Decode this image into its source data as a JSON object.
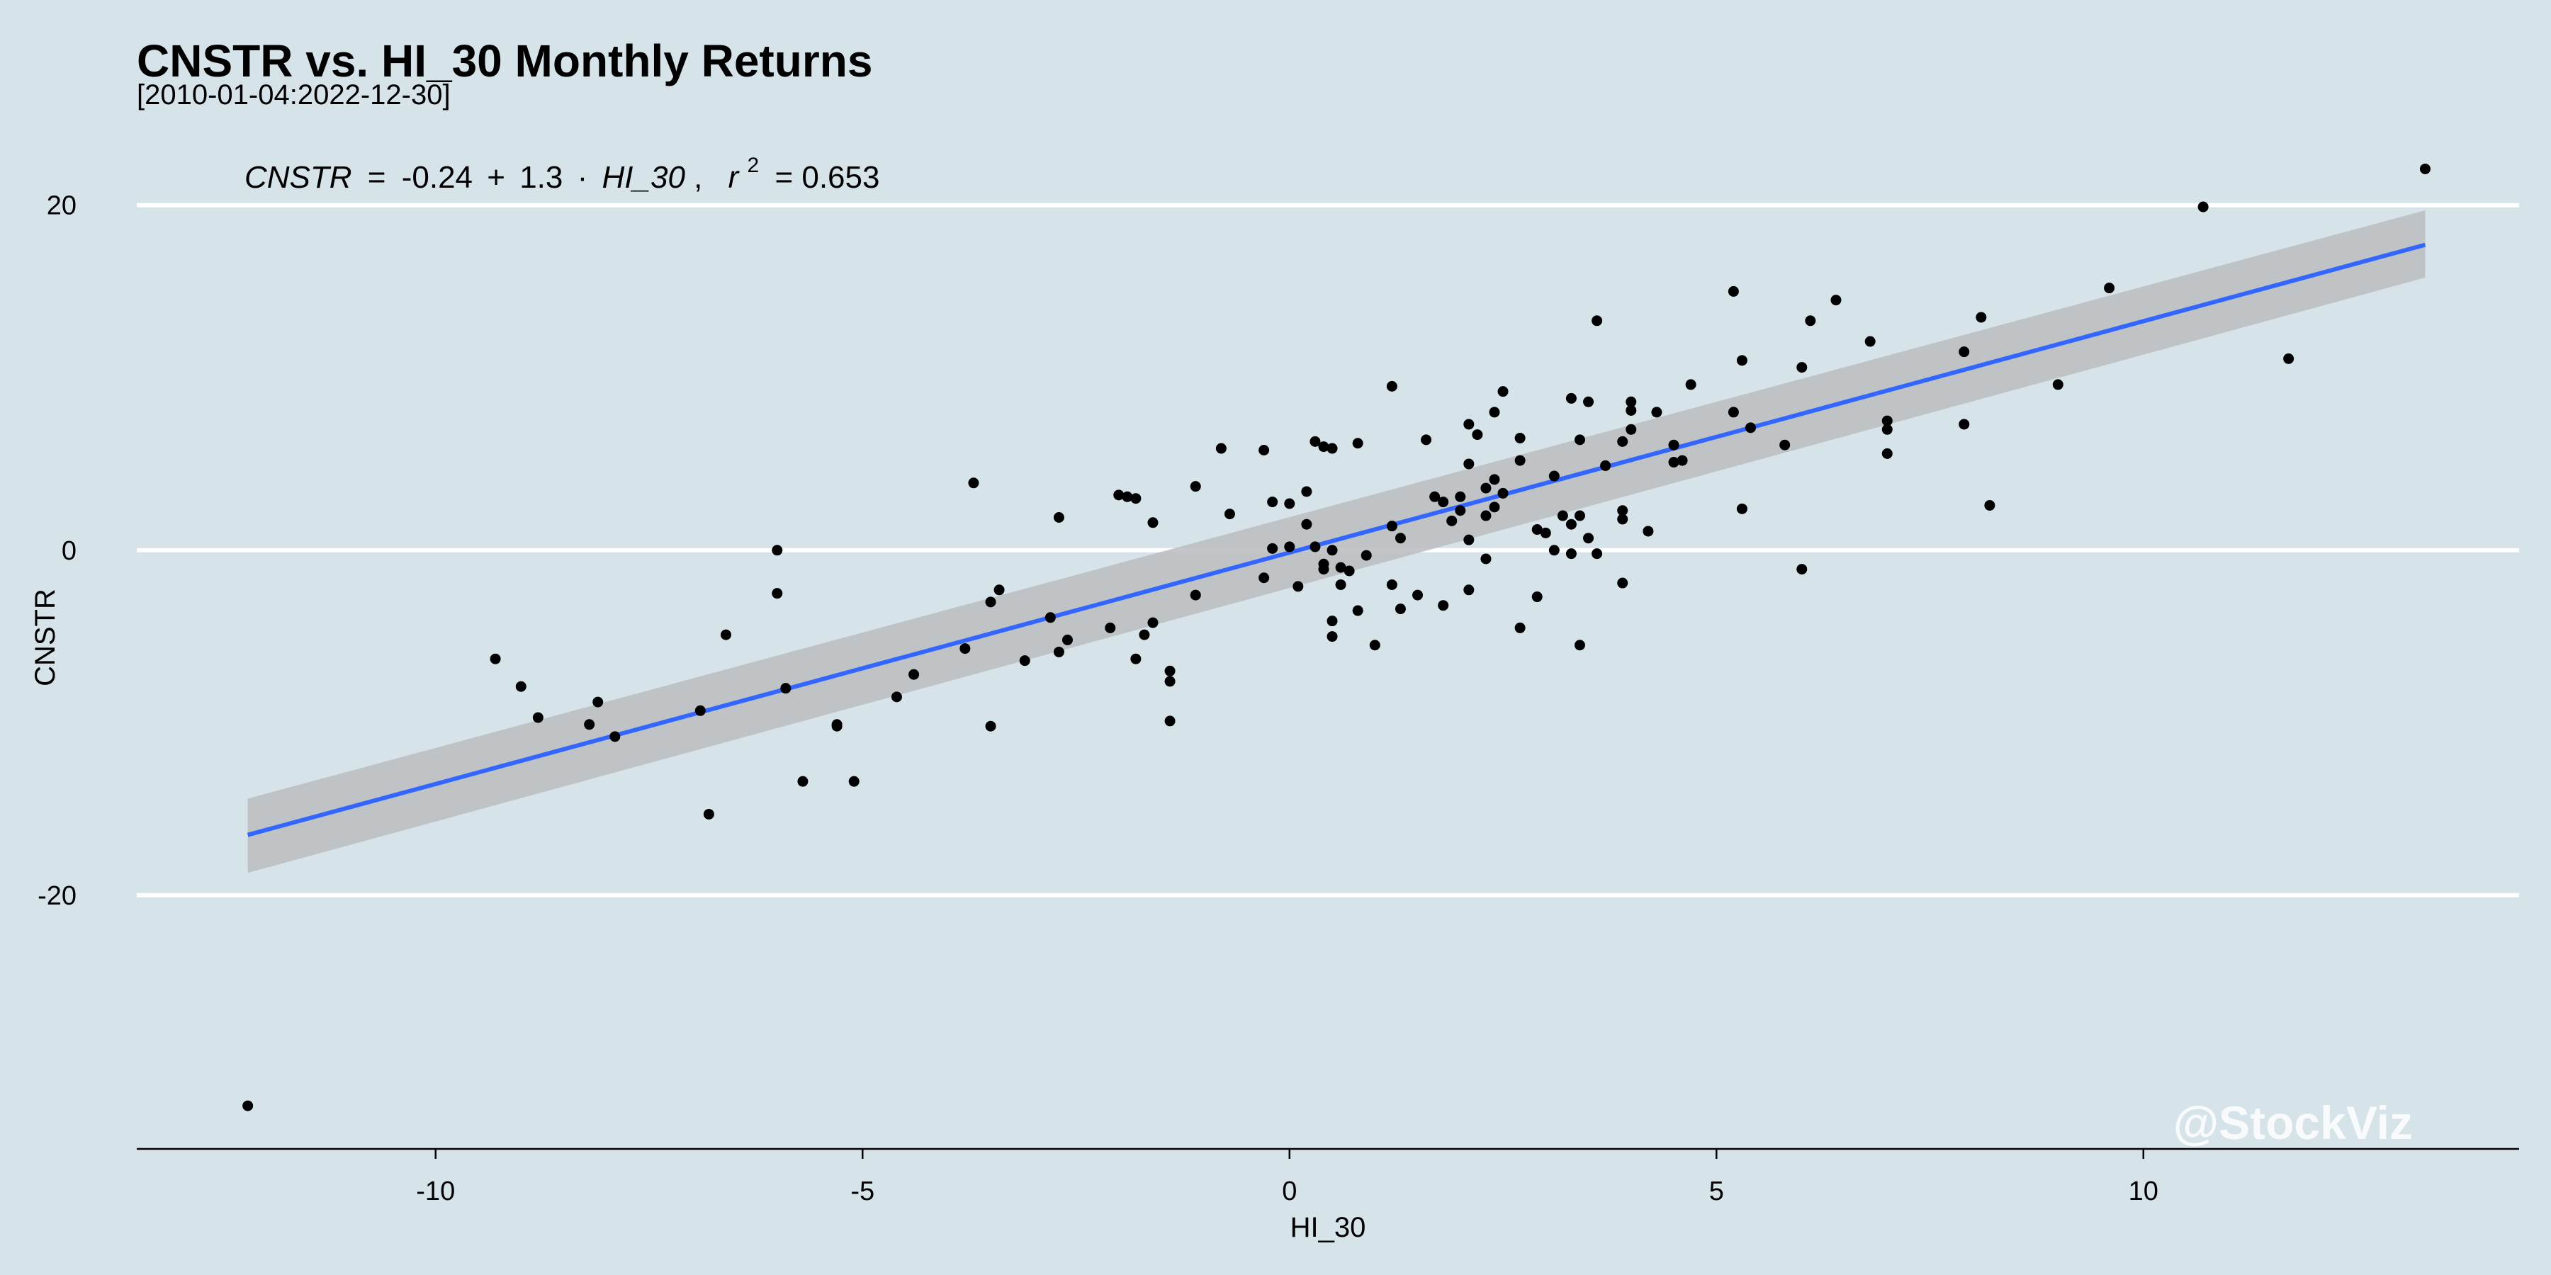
{
  "colors": {
    "background": "#d6e4ea",
    "gridline": "#ffffff",
    "points": "#000000",
    "fit_line": "#3366ff",
    "confidence_band": "#bdbfc2"
  },
  "chart_data": {
    "type": "scatter",
    "title": "CNSTR vs. HI_30 Monthly Returns",
    "subtitle": "[2010-01-04:2022-12-30]",
    "xlabel": "HI_30",
    "ylabel": "CNSTR",
    "xlim": [
      -13.5,
      14.4
    ],
    "ylim": [
      -34.7,
      24.5
    ],
    "x_ticks": [
      -10,
      -5,
      0,
      5,
      10
    ],
    "y_ticks": [
      -20,
      0,
      20
    ],
    "x_tick_labels": [
      "-10",
      "-5",
      "0",
      "5",
      "10"
    ],
    "y_tick_labels": [
      "-20",
      "0",
      "20"
    ],
    "grid": "horizontal major lines only",
    "regression": {
      "intercept": -0.24,
      "slope": 1.3,
      "r2": 0.653,
      "x_range": [
        -12.2,
        13.3
      ],
      "y_start": -16.5,
      "y_end": 17.7,
      "band_start": [
        -18.7,
        -14.4
      ],
      "band_end": [
        15.8,
        19.7
      ],
      "equation": {
        "y_var": "CNSTR",
        "eq_sign": "=",
        "intercept_text": "-0.24",
        "plus": "+",
        "slope_text": "1.3",
        "dot": "·",
        "x_var": "HI_30",
        "comma": ",",
        "r": "r",
        "sup": "2",
        "r2_text": "= 0.653"
      }
    },
    "points": [
      [
        -12.2,
        -32.2
      ],
      [
        -9.3,
        -6.3
      ],
      [
        -9.0,
        -7.9
      ],
      [
        -8.8,
        -9.7
      ],
      [
        -8.2,
        -10.1
      ],
      [
        -8.1,
        -8.8
      ],
      [
        -7.9,
        -10.8
      ],
      [
        -6.9,
        -9.3
      ],
      [
        -6.8,
        -15.3
      ],
      [
        -6.6,
        -4.9
      ],
      [
        -6.0,
        0.0
      ],
      [
        -6.0,
        -2.5
      ],
      [
        -5.9,
        -8.0
      ],
      [
        -5.7,
        -13.4
      ],
      [
        -5.3,
        -10.1
      ],
      [
        -5.3,
        -10.2
      ],
      [
        -5.1,
        -13.4
      ],
      [
        -4.6,
        -8.5
      ],
      [
        -4.4,
        -7.2
      ],
      [
        -3.8,
        -5.7
      ],
      [
        -3.7,
        3.9
      ],
      [
        -3.5,
        -3.0
      ],
      [
        -3.5,
        -10.2
      ],
      [
        -3.4,
        -2.3
      ],
      [
        -3.1,
        -6.4
      ],
      [
        -2.8,
        -3.9
      ],
      [
        -2.7,
        1.9
      ],
      [
        -2.7,
        -5.9
      ],
      [
        -2.6,
        -5.2
      ],
      [
        -2.1,
        -4.5
      ],
      [
        -2.0,
        3.2
      ],
      [
        -1.9,
        3.1
      ],
      [
        -1.8,
        3.0
      ],
      [
        -1.8,
        -6.3
      ],
      [
        -1.7,
        -4.9
      ],
      [
        -1.6,
        1.6
      ],
      [
        -1.6,
        -4.2
      ],
      [
        -1.4,
        -7.0
      ],
      [
        -1.4,
        -7.6
      ],
      [
        -1.4,
        -9.9
      ],
      [
        -1.1,
        3.7
      ],
      [
        -1.1,
        -2.6
      ],
      [
        -0.8,
        5.9
      ],
      [
        -0.7,
        2.1
      ],
      [
        -0.3,
        5.8
      ],
      [
        -0.3,
        -1.6
      ],
      [
        -0.2,
        2.8
      ],
      [
        -0.2,
        0.1
      ],
      [
        0.0,
        2.7
      ],
      [
        0.0,
        0.2
      ],
      [
        0.1,
        -2.1
      ],
      [
        0.2,
        3.4
      ],
      [
        0.2,
        1.5
      ],
      [
        0.3,
        6.3
      ],
      [
        0.3,
        0.2
      ],
      [
        0.4,
        6.0
      ],
      [
        0.4,
        -1.1
      ],
      [
        0.4,
        -0.8
      ],
      [
        0.5,
        5.9
      ],
      [
        0.5,
        0.0
      ],
      [
        0.5,
        -4.1
      ],
      [
        0.5,
        -5.0
      ],
      [
        0.6,
        -1.0
      ],
      [
        0.6,
        -2.0
      ],
      [
        0.7,
        -1.2
      ],
      [
        0.8,
        -3.5
      ],
      [
        0.8,
        6.2
      ],
      [
        0.9,
        -0.3
      ],
      [
        1.0,
        -5.5
      ],
      [
        1.2,
        9.5
      ],
      [
        1.2,
        1.4
      ],
      [
        1.2,
        -2.0
      ],
      [
        1.3,
        0.7
      ],
      [
        1.3,
        -3.4
      ],
      [
        1.5,
        -2.6
      ],
      [
        1.6,
        6.4
      ],
      [
        1.7,
        3.1
      ],
      [
        1.8,
        2.8
      ],
      [
        1.8,
        -3.2
      ],
      [
        1.9,
        1.7
      ],
      [
        2.0,
        3.1
      ],
      [
        2.0,
        2.3
      ],
      [
        2.1,
        7.3
      ],
      [
        2.1,
        5.0
      ],
      [
        2.1,
        0.6
      ],
      [
        2.1,
        -2.3
      ],
      [
        2.2,
        6.7
      ],
      [
        2.3,
        3.6
      ],
      [
        2.3,
        2.0
      ],
      [
        2.3,
        -0.5
      ],
      [
        2.4,
        8.0
      ],
      [
        2.4,
        4.1
      ],
      [
        2.4,
        2.5
      ],
      [
        2.5,
        9.2
      ],
      [
        2.5,
        3.3
      ],
      [
        2.7,
        6.5
      ],
      [
        2.7,
        5.2
      ],
      [
        2.7,
        -4.5
      ],
      [
        2.9,
        1.2
      ],
      [
        2.9,
        -2.7
      ],
      [
        3.0,
        1.0
      ],
      [
        3.1,
        4.3
      ],
      [
        3.1,
        0.0
      ],
      [
        3.2,
        2.0
      ],
      [
        3.3,
        8.8
      ],
      [
        3.3,
        1.5
      ],
      [
        3.3,
        -0.2
      ],
      [
        3.4,
        6.4
      ],
      [
        3.4,
        2.0
      ],
      [
        3.4,
        -5.5
      ],
      [
        3.5,
        8.6
      ],
      [
        3.5,
        0.7
      ],
      [
        3.6,
        13.3
      ],
      [
        3.6,
        -0.2
      ],
      [
        3.7,
        4.9
      ],
      [
        3.9,
        6.3
      ],
      [
        3.9,
        2.3
      ],
      [
        3.9,
        1.8
      ],
      [
        3.9,
        -1.9
      ],
      [
        4.0,
        8.6
      ],
      [
        4.0,
        8.1
      ],
      [
        4.0,
        7.0
      ],
      [
        4.2,
        1.1
      ],
      [
        4.3,
        8.0
      ],
      [
        4.5,
        5.1
      ],
      [
        4.5,
        6.1
      ],
      [
        4.6,
        5.2
      ],
      [
        4.7,
        9.6
      ],
      [
        5.2,
        15.0
      ],
      [
        5.2,
        8.0
      ],
      [
        5.3,
        11.0
      ],
      [
        5.3,
        2.4
      ],
      [
        5.4,
        7.1
      ],
      [
        5.8,
        6.1
      ],
      [
        6.0,
        10.6
      ],
      [
        6.0,
        -1.1
      ],
      [
        6.1,
        13.3
      ],
      [
        6.4,
        14.5
      ],
      [
        6.8,
        12.1
      ],
      [
        7.0,
        7.5
      ],
      [
        7.0,
        7.0
      ],
      [
        7.0,
        5.6
      ],
      [
        7.9,
        7.3
      ],
      [
        7.9,
        11.5
      ],
      [
        8.1,
        13.5
      ],
      [
        8.2,
        2.6
      ],
      [
        9.0,
        9.6
      ],
      [
        9.6,
        15.2
      ],
      [
        10.7,
        19.9
      ],
      [
        11.7,
        11.1
      ],
      [
        13.3,
        22.1
      ]
    ],
    "watermark": "@StockViz"
  }
}
